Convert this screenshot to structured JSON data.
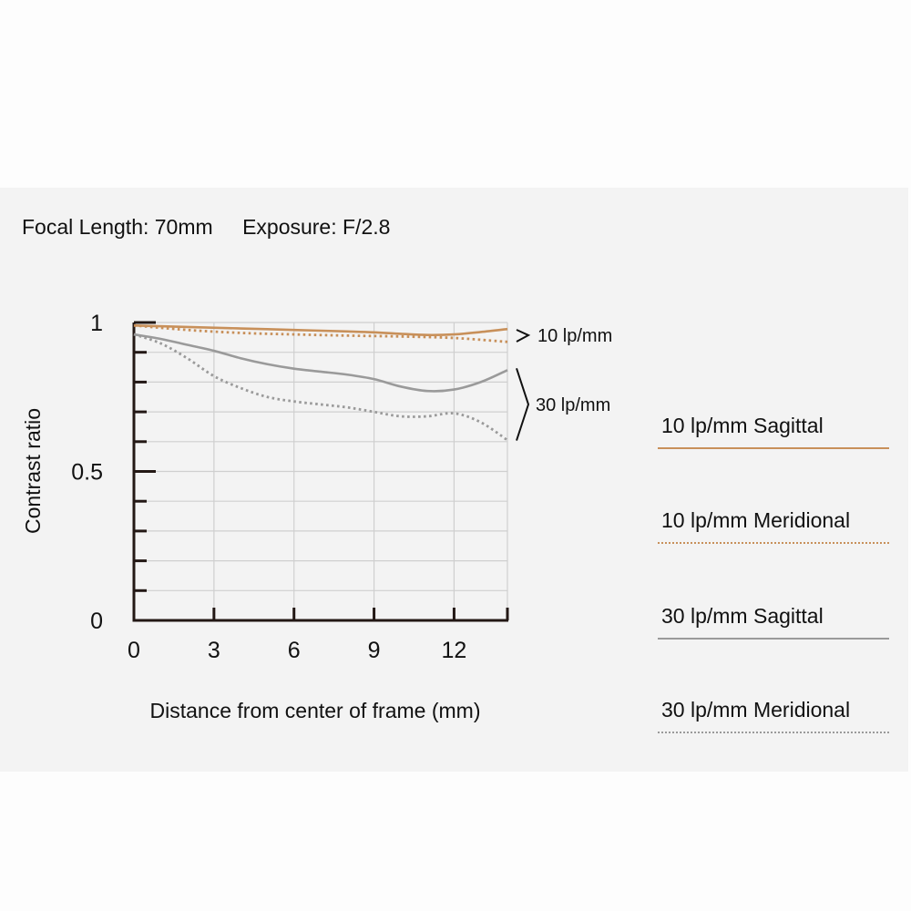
{
  "header": {
    "focal_length": "Focal Length: 70mm",
    "exposure": "Exposure: F/2.8"
  },
  "colors": {
    "tan": "#c8905a",
    "gray": "#9a9a9a",
    "grid": "#cfcfcf",
    "axis": "#231815"
  },
  "chart_data": {
    "type": "line",
    "xlabel": "Distance from center of frame (mm)",
    "ylabel": "Contrast ratio",
    "xlim": [
      0,
      14
    ],
    "ylim": [
      0,
      1
    ],
    "x_ticks": [
      0,
      3,
      6,
      9,
      12
    ],
    "y_tick_labels": [
      {
        "value": 1,
        "label": "1"
      },
      {
        "value": 0.5,
        "label": "0.5"
      },
      {
        "value": 0,
        "label": "0"
      }
    ],
    "grid": true,
    "group_labels": [
      {
        "label": "10 lp/mm",
        "bracket": [
          0.98,
          0.95
        ]
      },
      {
        "label": "30 lp/mm",
        "bracket": [
          0.84,
          0.61
        ]
      }
    ],
    "series": [
      {
        "name": "10 lp/mm Sagittal",
        "style": "solid",
        "color": "tan",
        "x": [
          0,
          2,
          4,
          6,
          8,
          9,
          10,
          11,
          12,
          13,
          14
        ],
        "y": [
          0.99,
          0.985,
          0.98,
          0.975,
          0.97,
          0.967,
          0.962,
          0.958,
          0.96,
          0.968,
          0.978
        ]
      },
      {
        "name": "10 lp/mm Meridional",
        "style": "dotted",
        "color": "tan",
        "x": [
          0,
          2,
          4,
          6,
          8,
          10,
          12,
          14
        ],
        "y": [
          0.99,
          0.975,
          0.965,
          0.96,
          0.956,
          0.953,
          0.948,
          0.935
        ]
      },
      {
        "name": "30 lp/mm Sagittal",
        "style": "solid",
        "color": "gray",
        "x": [
          0,
          1,
          2,
          3,
          4,
          5,
          6,
          7,
          8,
          9,
          10,
          11,
          12,
          13,
          14
        ],
        "y": [
          0.96,
          0.945,
          0.925,
          0.905,
          0.88,
          0.86,
          0.845,
          0.835,
          0.825,
          0.81,
          0.785,
          0.77,
          0.775,
          0.8,
          0.84
        ]
      },
      {
        "name": "30 lp/mm Meridional",
        "style": "dotted",
        "color": "gray",
        "x": [
          0,
          1,
          2,
          3,
          4,
          5,
          6,
          7,
          8,
          9,
          10,
          11,
          12,
          13,
          14
        ],
        "y": [
          0.96,
          0.93,
          0.88,
          0.82,
          0.78,
          0.75,
          0.735,
          0.725,
          0.715,
          0.7,
          0.685,
          0.685,
          0.695,
          0.665,
          0.605
        ]
      }
    ]
  }
}
